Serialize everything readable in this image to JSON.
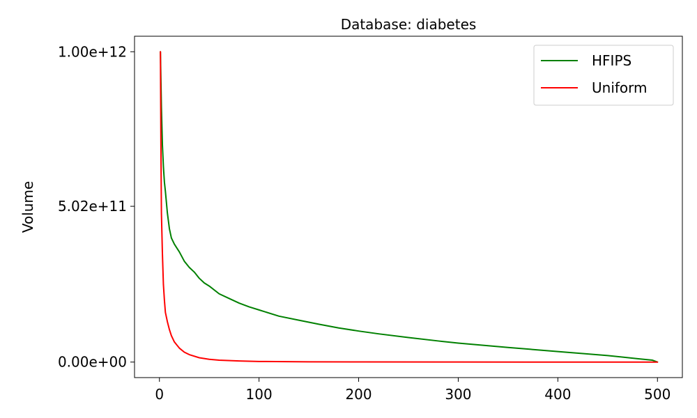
{
  "chart_data": {
    "type": "line",
    "title": "Database: diabetes",
    "xlabel": "",
    "ylabel": "Volume",
    "xlim": [
      -25,
      525
    ],
    "ylim": [
      -50000000000,
      1050000000000
    ],
    "xticks": [
      0,
      100,
      200,
      300,
      400,
      500
    ],
    "xtick_labels": [
      "0",
      "100",
      "200",
      "300",
      "400",
      "500"
    ],
    "yticks": [
      0,
      502000000000,
      1000000000000
    ],
    "ytick_labels": [
      "0.00e+00",
      "5.02e+11",
      "1.00e+12"
    ],
    "grid": false,
    "legend_position": "top-right",
    "series": [
      {
        "name": "HFIPS",
        "color": "#008000",
        "x": [
          1,
          2,
          3,
          4,
          5,
          6,
          8,
          10,
          12,
          15,
          20,
          25,
          30,
          35,
          40,
          45,
          50,
          60,
          70,
          80,
          90,
          100,
          120,
          140,
          160,
          180,
          200,
          220,
          250,
          280,
          300,
          350,
          400,
          450,
          480,
          495,
          500
        ],
        "y": [
          1000000000000,
          820000000000,
          700000000000,
          630000000000,
          580000000000,
          550000000000,
          480000000000,
          430000000000,
          400000000000,
          380000000000,
          355000000000,
          325000000000,
          305000000000,
          290000000000,
          270000000000,
          255000000000,
          245000000000,
          220000000000,
          205000000000,
          190000000000,
          178000000000,
          168000000000,
          148000000000,
          135000000000,
          122000000000,
          110000000000,
          100000000000,
          91000000000,
          79000000000,
          68000000000,
          61000000000,
          47000000000,
          34000000000,
          21000000000,
          11000000000,
          6000000000,
          0
        ]
      },
      {
        "name": "Uniform",
        "color": "#ff0000",
        "x": [
          1,
          1.5,
          2,
          3,
          4,
          5,
          6,
          8,
          10,
          12,
          15,
          20,
          25,
          30,
          40,
          50,
          60,
          80,
          100,
          150,
          200,
          300,
          400,
          500
        ],
        "y": [
          1000000000000,
          700000000000,
          480000000000,
          350000000000,
          250000000000,
          200000000000,
          160000000000,
          130000000000,
          105000000000,
          85000000000,
          65000000000,
          45000000000,
          32000000000,
          24000000000,
          14000000000,
          9000000000,
          6000000000,
          3500000000,
          2000000000,
          800000000,
          400000000,
          150000000,
          50000000,
          0
        ]
      }
    ]
  }
}
